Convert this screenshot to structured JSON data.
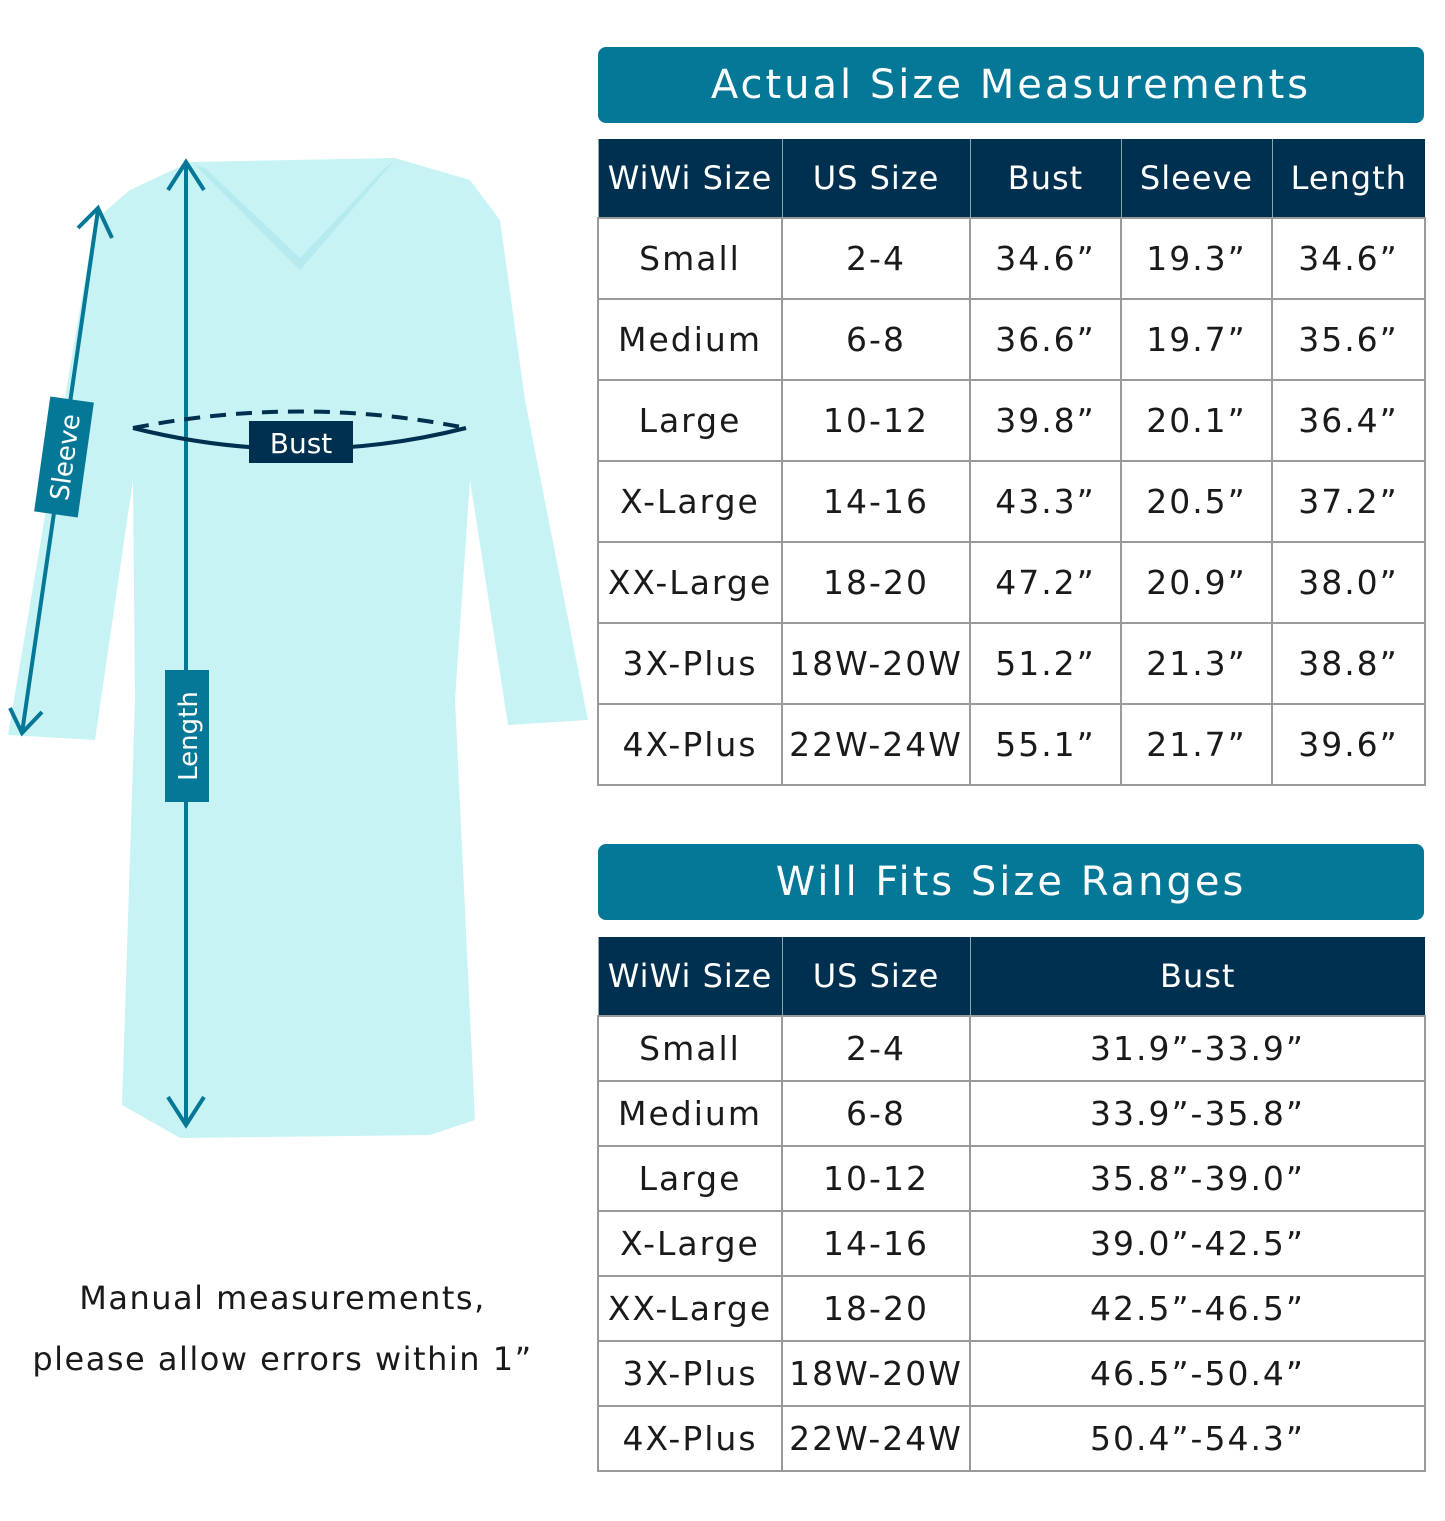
{
  "diagram": {
    "labels": {
      "sleeve": "Sleeve",
      "bust": "Bust",
      "length": "Length"
    },
    "colors": {
      "garment": "#c8f3f5",
      "arrow": "#047896",
      "label_bg": "#00304f"
    }
  },
  "note": {
    "line1": "Manual measurements,",
    "line2": "please allow errors within 1”"
  },
  "actual": {
    "title": "Actual Size Measurements",
    "headers": [
      "WiWi Size",
      "US Size",
      "Bust",
      "Sleeve",
      "Length"
    ],
    "rows": [
      [
        "Small",
        "2-4",
        "34.6”",
        "19.3”",
        "34.6”"
      ],
      [
        "Medium",
        "6-8",
        "36.6”",
        "19.7”",
        "35.6”"
      ],
      [
        "Large",
        "10-12",
        "39.8”",
        "20.1”",
        "36.4”"
      ],
      [
        "X-Large",
        "14-16",
        "43.3”",
        "20.5”",
        "37.2”"
      ],
      [
        "XX-Large",
        "18-20",
        "47.2”",
        "20.9”",
        "38.0”"
      ],
      [
        "3X-Plus",
        "18W-20W",
        "51.2”",
        "21.3”",
        "38.8”"
      ],
      [
        "4X-Plus",
        "22W-24W",
        "55.1”",
        "21.7”",
        "39.6”"
      ]
    ]
  },
  "fits": {
    "title": "Will Fits Size Ranges",
    "headers": [
      "WiWi Size",
      "US Size",
      "Bust"
    ],
    "rows": [
      [
        "Small",
        "2-4",
        "31.9”-33.9”"
      ],
      [
        "Medium",
        "6-8",
        "33.9”-35.8”"
      ],
      [
        "Large",
        "10-12",
        "35.8”-39.0”"
      ],
      [
        "X-Large",
        "14-16",
        "39.0”-42.5”"
      ],
      [
        "XX-Large",
        "18-20",
        "42.5”-46.5”"
      ],
      [
        "3X-Plus",
        "18W-20W",
        "46.5”-50.4”"
      ],
      [
        "4X-Plus",
        "22W-24W",
        "50.4”-54.3”"
      ]
    ]
  }
}
